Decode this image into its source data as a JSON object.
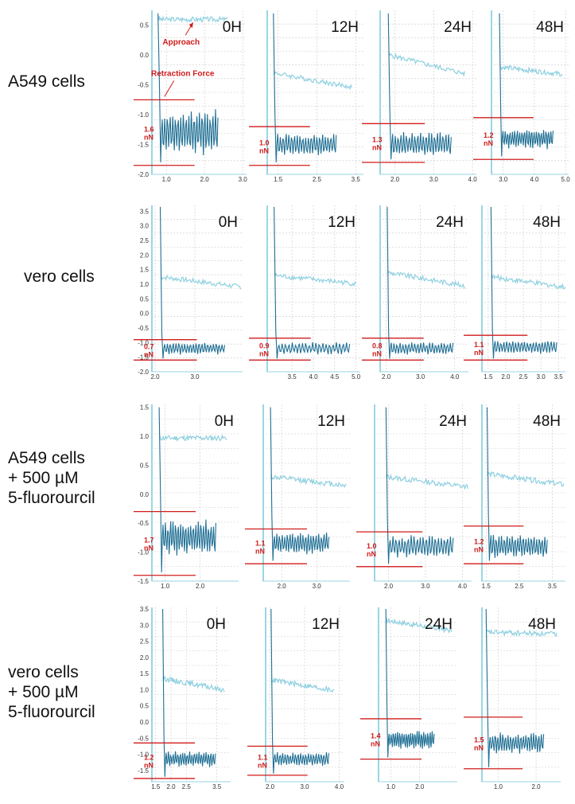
{
  "colors": {
    "approach": "#8fd0e0",
    "retraction": "#1f6f94",
    "force_marker": "#d01c1c",
    "axis": "#9ad6e4",
    "grid": "#c9c9c9"
  },
  "annotations": {
    "approach": "Approach",
    "retraction": "Retraction Force"
  },
  "rows": [
    {
      "label_lines": [
        "A549 cells"
      ],
      "y_ticks": [
        "0.5",
        "0.0",
        "-0.5",
        "-1.0",
        "-1.5",
        "-2.0"
      ]
    },
    {
      "label_lines": [
        "vero cells"
      ],
      "y_ticks": [
        "3.5",
        "3.0",
        "2.5",
        "2.0",
        "1.5",
        "1.0",
        "0.5",
        "0.0",
        "-0.5",
        "-1.0",
        "-1.5",
        "-2.0"
      ]
    },
    {
      "label_lines": [
        "A549 cells",
        "+ 500 µM",
        "5-fluorourcil"
      ],
      "y_ticks": [
        "1.5",
        "1.0",
        "0.5",
        "0.0",
        "-0.5",
        "-1.0",
        "-1.5"
      ]
    },
    {
      "label_lines": [
        "vero cells",
        "+ 500 µM",
        "5-fluorourcil"
      ],
      "y_ticks": [
        "3.5",
        "3.0",
        "2.5",
        "2.0",
        "1.5",
        "1.0",
        "0.5",
        "0.0",
        "-0.5",
        "-1.0",
        "-1.5"
      ]
    }
  ],
  "chart_data": [
    {
      "type": "line",
      "row": 0,
      "title": "0H",
      "ylim": [
        -2.0,
        0.75
      ],
      "xlim": [
        0.6,
        3.1
      ],
      "x_ticks": [
        1.0,
        2.0,
        3.0
      ],
      "x_tick_labels": [
        "1.0",
        "2.0",
        "3.0"
      ],
      "contact_x": 0.8,
      "approach_level": 0.6,
      "approach_slope": 0.0,
      "approach_end_x": 2.6,
      "retraction_mean": -1.3,
      "retraction_amp": 0.4,
      "retraction_end_x": 2.35,
      "force_top": -0.75,
      "force_bottom": -1.85,
      "force_value": "1.6",
      "force_unit": "nN"
    },
    {
      "type": "line",
      "row": 0,
      "title": "12H",
      "ylim": [
        -2.0,
        0.75
      ],
      "xlim": [
        1.2,
        3.7
      ],
      "x_ticks": [
        1.5,
        2.5,
        3.5
      ],
      "x_tick_labels": [
        "1.5",
        "2.5",
        "3.5"
      ],
      "contact_x": 1.4,
      "approach_level": -0.3,
      "approach_slope": -0.12,
      "approach_end_x": 3.4,
      "retraction_mean": -1.5,
      "retraction_amp": 0.2,
      "retraction_end_x": 3.0,
      "force_top": -1.2,
      "force_bottom": -1.85,
      "force_value": "1.0",
      "force_unit": "nN"
    },
    {
      "type": "line",
      "row": 0,
      "title": "24H",
      "ylim": [
        -2.0,
        0.75
      ],
      "xlim": [
        1.6,
        4.1
      ],
      "x_ticks": [
        2.0,
        3.0,
        4.0
      ],
      "x_tick_labels": [
        "2.0",
        "3.0",
        "4.0"
      ],
      "contact_x": 1.85,
      "approach_level": 0.0,
      "approach_slope": -0.16,
      "approach_end_x": 3.8,
      "retraction_mean": -1.5,
      "retraction_amp": 0.22,
      "retraction_end_x": 3.45,
      "force_top": -1.15,
      "force_bottom": -1.8,
      "force_value": "1.3",
      "force_unit": "nN"
    },
    {
      "type": "line",
      "row": 0,
      "title": "48H",
      "ylim": [
        -2.0,
        0.75
      ],
      "xlim": [
        2.6,
        5.1
      ],
      "x_ticks": [
        3.0,
        4.0,
        5.0
      ],
      "x_tick_labels": [
        "3.0",
        "4.0",
        "5.0"
      ],
      "contact_x": 2.9,
      "approach_level": -0.2,
      "approach_slope": -0.06,
      "approach_end_x": 4.9,
      "retraction_mean": -1.4,
      "retraction_amp": 0.18,
      "retraction_end_x": 4.6,
      "force_top": -1.05,
      "force_bottom": -1.75,
      "force_value": "1.2",
      "force_unit": "nN"
    },
    {
      "type": "line",
      "row": 1,
      "title": "0H",
      "ylim": [
        -2.0,
        3.7
      ],
      "xlim": [
        1.9,
        4.2
      ],
      "x_ticks": [
        2.0,
        3.0
      ],
      "x_tick_labels": [
        "2.0",
        "3.0"
      ],
      "contact_x": 2.15,
      "approach_level": 1.25,
      "approach_slope": -0.17,
      "approach_end_x": 4.15,
      "retraction_mean": -1.2,
      "retraction_amp": 0.22,
      "retraction_end_x": 3.75,
      "force_top": -0.9,
      "force_bottom": -1.6,
      "force_value": "0.7",
      "force_unit": "nN"
    },
    {
      "type": "line",
      "row": 1,
      "title": "12H",
      "ylim": [
        -2.0,
        3.7
      ],
      "xlim": [
        2.9,
        5.1
      ],
      "x_ticks": [
        3.5,
        4.0,
        4.5,
        5.0
      ],
      "x_tick_labels": [
        "3.5",
        "4.0",
        "4.5",
        "5.0"
      ],
      "contact_x": 3.1,
      "approach_level": 1.3,
      "approach_slope": -0.15,
      "approach_end_x": 5.0,
      "retraction_mean": -1.2,
      "retraction_amp": 0.22,
      "retraction_end_x": 4.85,
      "force_top": -0.85,
      "force_bottom": -1.6,
      "force_value": "0.9",
      "force_unit": "nN"
    },
    {
      "type": "line",
      "row": 1,
      "title": "24H",
      "ylim": [
        -2.0,
        3.7
      ],
      "xlim": [
        1.8,
        4.4
      ],
      "x_ticks": [
        2.0,
        3.0,
        4.0
      ],
      "x_tick_labels": [
        "2.0",
        "3.0",
        "4.0"
      ],
      "contact_x": 2.05,
      "approach_level": 1.4,
      "approach_slope": -0.2,
      "approach_end_x": 4.3,
      "retraction_mean": -1.2,
      "retraction_amp": 0.22,
      "retraction_end_x": 3.95,
      "force_top": -0.85,
      "force_bottom": -1.6,
      "force_value": "0.8",
      "force_unit": "nN"
    },
    {
      "type": "line",
      "row": 1,
      "title": "48H",
      "ylim": [
        -2.0,
        3.7
      ],
      "xlim": [
        1.3,
        3.7
      ],
      "x_ticks": [
        1.5,
        2.0,
        2.5,
        3.0,
        3.5
      ],
      "x_tick_labels": [
        "1.5",
        "2.0",
        "2.5",
        "3.0",
        "3.5"
      ],
      "contact_x": 1.6,
      "approach_level": 1.25,
      "approach_slope": -0.17,
      "approach_end_x": 3.7,
      "retraction_mean": -1.15,
      "retraction_amp": 0.25,
      "retraction_end_x": 3.45,
      "force_top": -0.75,
      "force_bottom": -1.6,
      "force_value": "1.1",
      "force_unit": "nN"
    },
    {
      "type": "line",
      "row": 2,
      "title": "0H",
      "ylim": [
        -1.5,
        1.55
      ],
      "xlim": [
        0.6,
        3.1
      ],
      "x_ticks": [
        1.0,
        2.0
      ],
      "x_tick_labels": [
        "1.0",
        "2.0"
      ],
      "contact_x": 0.85,
      "approach_level": 0.97,
      "approach_slope": 0.0,
      "approach_end_x": 2.75,
      "retraction_mean": -0.75,
      "retraction_amp": 0.32,
      "retraction_end_x": 2.45,
      "force_top": -0.3,
      "force_bottom": -1.4,
      "force_value": "1.7",
      "force_unit": "nN"
    },
    {
      "type": "line",
      "row": 2,
      "title": "12H",
      "ylim": [
        -1.5,
        1.55
      ],
      "xlim": [
        1.45,
        3.95
      ],
      "x_ticks": [
        2.0,
        3.0
      ],
      "x_tick_labels": [
        "2.0",
        "3.0"
      ],
      "contact_x": 1.7,
      "approach_level": 0.3,
      "approach_slope": -0.07,
      "approach_end_x": 3.85,
      "retraction_mean": -0.85,
      "retraction_amp": 0.2,
      "retraction_end_x": 3.35,
      "force_top": -0.6,
      "force_bottom": -1.2,
      "force_value": "1.1",
      "force_unit": "nN"
    },
    {
      "type": "line",
      "row": 2,
      "title": "24H",
      "ylim": [
        -1.5,
        1.55
      ],
      "xlim": [
        1.6,
        4.25
      ],
      "x_ticks": [
        2.0,
        3.0,
        4.0
      ],
      "x_tick_labels": [
        "2.0",
        "3.0",
        "4.0"
      ],
      "contact_x": 1.95,
      "approach_level": 0.3,
      "approach_slope": -0.08,
      "approach_end_x": 4.15,
      "retraction_mean": -0.9,
      "retraction_amp": 0.2,
      "retraction_end_x": 3.75,
      "force_top": -0.65,
      "force_bottom": -1.25,
      "force_value": "1.0",
      "force_unit": "nN"
    },
    {
      "type": "line",
      "row": 2,
      "title": "48H",
      "ylim": [
        -1.5,
        1.55
      ],
      "xlim": [
        1.35,
        3.9
      ],
      "x_ticks": [
        1.5,
        2.5,
        3.5
      ],
      "x_tick_labels": [
        "1.5",
        "2.5",
        "3.5"
      ],
      "contact_x": 1.55,
      "approach_level": 0.35,
      "approach_slope": -0.08,
      "approach_end_x": 3.85,
      "retraction_mean": -0.9,
      "retraction_amp": 0.22,
      "retraction_end_x": 3.35,
      "force_top": -0.55,
      "force_bottom": -1.2,
      "force_value": "1.2",
      "force_unit": "nN"
    },
    {
      "type": "line",
      "row": 3,
      "title": "0H",
      "ylim": [
        -1.85,
        3.55
      ],
      "xlim": [
        1.35,
        3.95
      ],
      "x_ticks": [
        1.5,
        2.0,
        2.5,
        3.5
      ],
      "x_tick_labels": [
        "1.5",
        "2.0",
        "2.5",
        "3.5"
      ],
      "contact_x": 1.75,
      "approach_level": 1.35,
      "approach_slope": -0.18,
      "approach_end_x": 3.75,
      "retraction_mean": -1.15,
      "retraction_amp": 0.25,
      "retraction_end_x": 3.45,
      "force_top": -0.65,
      "force_bottom": -1.75,
      "force_value": "1.2",
      "force_unit": "nN"
    },
    {
      "type": "line",
      "row": 3,
      "title": "12H",
      "ylim": [
        -1.85,
        3.55
      ],
      "xlim": [
        1.85,
        4.15
      ],
      "x_ticks": [
        2.0,
        3.0,
        4.0
      ],
      "x_tick_labels": [
        "2.0",
        "3.0",
        "4.0"
      ],
      "contact_x": 2.05,
      "approach_level": 1.3,
      "approach_slope": -0.18,
      "approach_end_x": 3.85,
      "retraction_mean": -1.15,
      "retraction_amp": 0.22,
      "retraction_end_x": 3.7,
      "force_top": -0.75,
      "force_bottom": -1.65,
      "force_value": "1.1",
      "force_unit": "nN"
    },
    {
      "type": "line",
      "row": 3,
      "title": "24H",
      "ylim": [
        -1.85,
        3.55
      ],
      "xlim": [
        0.55,
        3.3
      ],
      "x_ticks": [
        1.0,
        2.0
      ],
      "x_tick_labels": [
        "1.0",
        "2.0"
      ],
      "contact_x": 0.85,
      "approach_level": 3.15,
      "approach_slope": -0.14,
      "approach_end_x": 3.1,
      "retraction_mean": -0.55,
      "retraction_amp": 0.3,
      "retraction_end_x": 2.5,
      "force_top": 0.1,
      "force_bottom": -1.15,
      "force_value": "1.4",
      "force_unit": "nN"
    },
    {
      "type": "line",
      "row": 3,
      "title": "48H",
      "ylim": [
        -1.85,
        3.55
      ],
      "xlim": [
        0.55,
        2.65
      ],
      "x_ticks": [
        1.0,
        2.0
      ],
      "x_tick_labels": [
        "1.0",
        "2.0"
      ],
      "contact_x": 0.7,
      "approach_level": 2.78,
      "approach_slope": -0.03,
      "approach_end_x": 2.55,
      "retraction_mean": -0.65,
      "retraction_amp": 0.35,
      "retraction_end_x": 2.2,
      "force_top": 0.15,
      "force_bottom": -1.45,
      "force_value": "1.5",
      "force_unit": "nN"
    }
  ]
}
